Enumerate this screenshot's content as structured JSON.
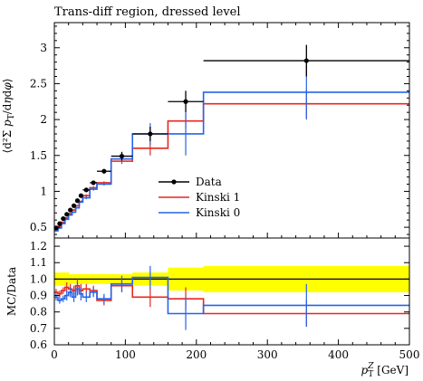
{
  "chart_data": {
    "title": "Trans-diff region, dressed level",
    "type": "line",
    "xlabel": "p_T^Z [GeV]",
    "x_ticks": [
      0,
      100,
      200,
      300,
      400,
      500
    ],
    "xlim": [
      0,
      500
    ],
    "main": {
      "ylabel": "⟨d²Σ p_T/dηdφ⟩",
      "ylim": [
        0.35,
        3.35
      ],
      "y_ticks": [
        0.5,
        1,
        1.5,
        2,
        2.5,
        3
      ],
      "data": {
        "name": "Data",
        "color": "#000000",
        "points": [
          {
            "x": 2.5,
            "y": 0.49,
            "xlo": 0,
            "xhi": 5,
            "err": 0.02
          },
          {
            "x": 7.5,
            "y": 0.55,
            "xlo": 5,
            "xhi": 10,
            "err": 0.02
          },
          {
            "x": 12.5,
            "y": 0.62,
            "xlo": 10,
            "xhi": 15,
            "err": 0.02
          },
          {
            "x": 17.5,
            "y": 0.68,
            "xlo": 15,
            "xhi": 20,
            "err": 0.02
          },
          {
            "x": 22.5,
            "y": 0.74,
            "xlo": 20,
            "xhi": 25,
            "err": 0.02
          },
          {
            "x": 27.5,
            "y": 0.8,
            "xlo": 25,
            "xhi": 30,
            "err": 0.02
          },
          {
            "x": 32.5,
            "y": 0.87,
            "xlo": 30,
            "xhi": 35,
            "err": 0.02
          },
          {
            "x": 37.5,
            "y": 0.94,
            "xlo": 35,
            "xhi": 40,
            "err": 0.02
          },
          {
            "x": 45,
            "y": 1.02,
            "xlo": 40,
            "xhi": 50,
            "err": 0.02
          },
          {
            "x": 55,
            "y": 1.12,
            "xlo": 50,
            "xhi": 60,
            "err": 0.03
          },
          {
            "x": 70,
            "y": 1.28,
            "xlo": 60,
            "xhi": 80,
            "err": 0.03
          },
          {
            "x": 95,
            "y": 1.49,
            "xlo": 80,
            "xhi": 110,
            "err": 0.06
          },
          {
            "x": 135,
            "y": 1.8,
            "xlo": 110,
            "xhi": 160,
            "err": 0.1
          },
          {
            "x": 185,
            "y": 2.25,
            "xlo": 160,
            "xhi": 210,
            "err": 0.15
          },
          {
            "x": 355,
            "y": 2.82,
            "xlo": 210,
            "xhi": 500,
            "err": 0.22
          }
        ]
      },
      "series": [
        {
          "name": "Kinski 1",
          "color": "#e8271f",
          "edges": [
            0,
            5,
            10,
            15,
            20,
            25,
            30,
            35,
            40,
            50,
            60,
            80,
            110,
            160,
            210,
            500
          ],
          "values": [
            0.46,
            0.51,
            0.57,
            0.63,
            0.69,
            0.74,
            0.8,
            0.86,
            0.94,
            1.05,
            1.12,
            1.42,
            1.6,
            1.98,
            2.22
          ],
          "errors": [
            0.01,
            0.01,
            0.01,
            0.01,
            0.01,
            0.01,
            0.01,
            0.01,
            0.02,
            0.02,
            0.02,
            0.04,
            0.1,
            0.1,
            0.2
          ]
        },
        {
          "name": "Kinski 0",
          "color": "#2664e8",
          "edges": [
            0,
            5,
            10,
            15,
            20,
            25,
            30,
            35,
            40,
            50,
            60,
            80,
            110,
            160,
            210,
            500
          ],
          "values": [
            0.45,
            0.49,
            0.55,
            0.61,
            0.67,
            0.71,
            0.77,
            0.85,
            0.91,
            1.03,
            1.1,
            1.45,
            1.8,
            1.8,
            2.38
          ],
          "errors": [
            0.01,
            0.01,
            0.01,
            0.01,
            0.01,
            0.01,
            0.01,
            0.01,
            0.02,
            0.02,
            0.02,
            0.04,
            0.15,
            0.3,
            0.38
          ]
        }
      ],
      "legend_location": "center-right",
      "legend_entries": [
        "Data",
        "Kinski 1",
        "Kinski 0"
      ]
    },
    "ratio": {
      "ylabel": "MC/Data",
      "ylim": [
        0.6,
        1.25
      ],
      "y_ticks": [
        0.6,
        0.7,
        0.8,
        0.9,
        1.0,
        1.1,
        1.2
      ],
      "band_color": "#ffff00",
      "band": {
        "edges": [
          0,
          5,
          10,
          15,
          20,
          25,
          30,
          35,
          40,
          50,
          60,
          80,
          110,
          160,
          210,
          500
        ],
        "halfwidth": [
          0.04,
          0.04,
          0.04,
          0.04,
          0.03,
          0.03,
          0.03,
          0.03,
          0.03,
          0.03,
          0.03,
          0.03,
          0.04,
          0.07,
          0.08
        ]
      },
      "series": [
        {
          "name": "Kinski 1",
          "color": "#e8271f",
          "edges": [
            0,
            5,
            10,
            15,
            20,
            25,
            30,
            35,
            40,
            50,
            60,
            80,
            110,
            160,
            210,
            500
          ],
          "values": [
            0.92,
            0.91,
            0.93,
            0.95,
            0.94,
            0.93,
            0.96,
            0.93,
            0.94,
            0.93,
            0.87,
            0.96,
            0.89,
            0.88,
            0.79
          ],
          "errors": [
            0.02,
            0.02,
            0.02,
            0.03,
            0.03,
            0.03,
            0.04,
            0.04,
            0.03,
            0.03,
            0.03,
            0.04,
            0.06,
            0.07,
            0.08
          ]
        },
        {
          "name": "Kinski 0",
          "color": "#2664e8",
          "edges": [
            0,
            5,
            10,
            15,
            20,
            25,
            30,
            35,
            40,
            50,
            60,
            80,
            110,
            160,
            210,
            500
          ],
          "values": [
            0.89,
            0.87,
            0.88,
            0.9,
            0.92,
            0.89,
            0.94,
            0.91,
            0.89,
            0.92,
            0.88,
            0.97,
            1.01,
            0.79,
            0.84
          ],
          "errors": [
            0.02,
            0.02,
            0.02,
            0.03,
            0.03,
            0.03,
            0.04,
            0.04,
            0.03,
            0.03,
            0.03,
            0.05,
            0.07,
            0.1,
            0.13
          ]
        }
      ]
    },
    "grid": false
  }
}
